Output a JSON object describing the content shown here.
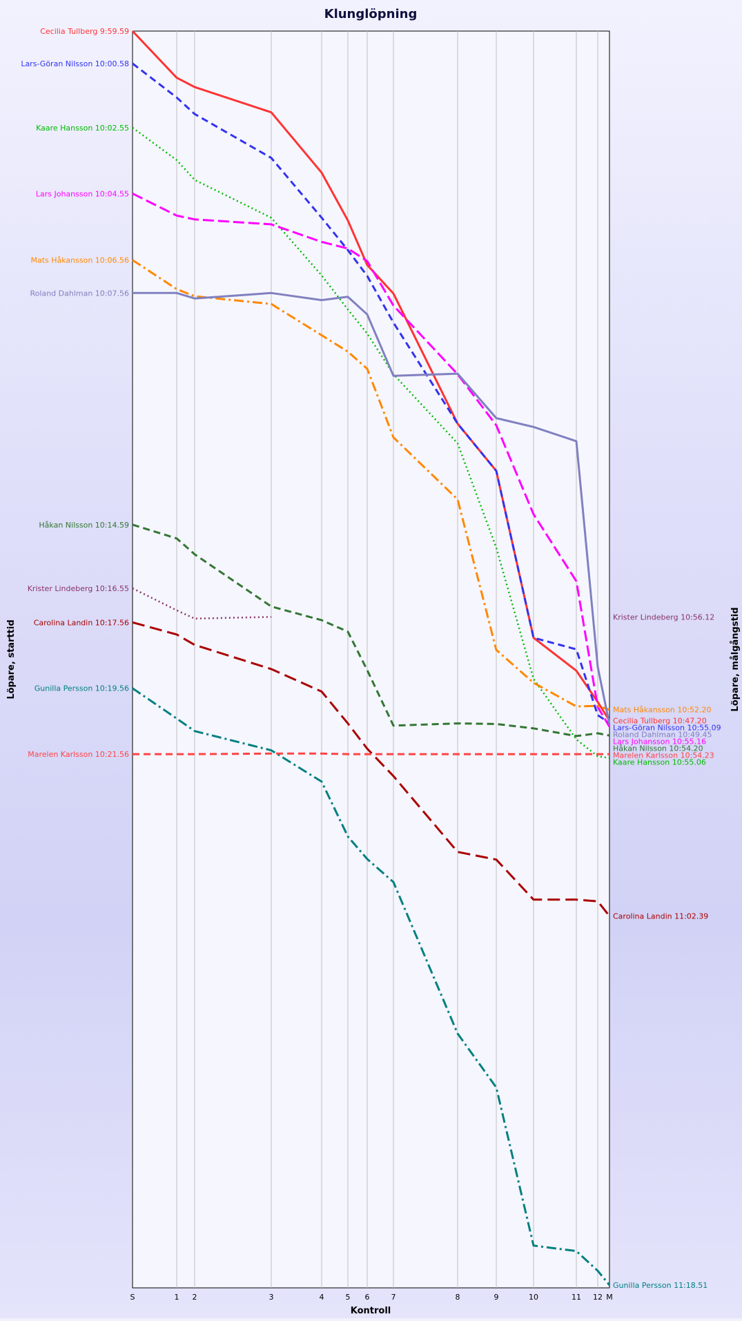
{
  "chart_data": {
    "type": "line",
    "title": "Klunglöpning",
    "xlabel": "Kontroll",
    "ylabel_left": "Löpare, starttid",
    "ylabel_right": "Löpare, målgångstid",
    "grid": "vertical lines at controls",
    "x_categories": [
      "S",
      "1",
      "2",
      "3",
      "4",
      "5",
      "6",
      "7",
      "8",
      "9",
      "10",
      "11",
      "12",
      "M"
    ],
    "series": [
      {
        "name": "Cecilia Tullberg",
        "start_label": "Cecilia Tullberg 9:59.59",
        "finish_label": "Cecilia Tullberg 10:47.20",
        "color": "#ff3333",
        "dash": "solid",
        "values": [
          0,
          85,
          102,
          148,
          258,
          345,
          426,
          478,
          715,
          801,
          1105,
          1165,
          1222,
          1256
        ]
      },
      {
        "name": "Lars-Göran Nilsson",
        "start_label": "Lars-Göran Nilsson 10:00.58",
        "finish_label": "Lars-Göran Nilsson 10:55.09",
        "color": "#3333ee",
        "dash": "dashed",
        "values": [
          59,
          121,
          151,
          231,
          340,
          399,
          446,
          531,
          715,
          801,
          1105,
          1126,
          1246,
          1260
        ]
      },
      {
        "name": "Kaare Hansson",
        "start_label": "Kaare Hansson 10:02.55",
        "finish_label": "Kaare Hansson 10:55.06",
        "color": "#00bb00",
        "dash": "dotted",
        "values": [
          176,
          235,
          271,
          340,
          445,
          507,
          551,
          625,
          751,
          941,
          1180,
          1290,
          1321,
          1324
        ]
      },
      {
        "name": "Lars Johansson",
        "start_label": "Lars Johansson 10:04.55",
        "finish_label": "Lars Johansson 10:55.16",
        "color": "#ff00ff",
        "dash": "dashdash",
        "values": [
          296,
          336,
          343,
          352,
          384,
          396,
          419,
          500,
          625,
          718,
          880,
          1002,
          1231,
          1267
        ]
      },
      {
        "name": "Mats Håkansson",
        "start_label": "Mats Håkansson 10:06.56",
        "finish_label": "Mats Håkansson 10:52.20",
        "color": "#ff8800",
        "dash": "dashdot",
        "values": [
          417,
          470,
          483,
          497,
          554,
          584,
          615,
          740,
          853,
          1127,
          1187,
          1230,
          1229,
          1236
        ]
      },
      {
        "name": "Roland Dahlman",
        "start_label": "Roland Dahlman 10:07.56",
        "finish_label": "Roland Dahlman 10:49.45",
        "color": "#8080c0",
        "dash": "solid",
        "values": [
          477,
          477,
          487,
          477,
          490,
          484,
          516,
          628,
          624,
          705,
          721,
          747,
          1158,
          1263
        ]
      },
      {
        "name": "Håkan Nilsson",
        "start_label": "Håkan Nilsson 10:14.59",
        "finish_label": "Håkan Nilsson 10:54.20",
        "color": "#337733",
        "dash": "dashed",
        "values": [
          899,
          924,
          953,
          1048,
          1073,
          1094,
          1164,
          1265,
          1261,
          1262,
          1270,
          1284,
          1279,
          1283
        ]
      },
      {
        "name": "Krister Lindeberg",
        "start_label": "Krister Lindeberg 10:16.55",
        "finish_label": "Krister Lindeberg 10:56.12",
        "color": "#883366",
        "dash": "dotted",
        "values": [
          1015,
          1055,
          1070,
          1067,
          null,
          null,
          null,
          null,
          null,
          null,
          null,
          null,
          null,
          null
        ]
      },
      {
        "name": "Carolina Landin",
        "start_label": "Carolina Landin 10:17.56",
        "finish_label": "Carolina Landin 11:02.39",
        "color": "#aa0000",
        "dash": "longdash",
        "values": [
          1077,
          1099,
          1118,
          1162,
          1203,
          1261,
          1307,
          1357,
          1495,
          1509,
          1582,
          1582,
          1585,
          1612
        ]
      },
      {
        "name": "Gunilla Persson",
        "start_label": "Gunilla Persson 10:19.56",
        "finish_label": "Gunilla Persson 11:18.51",
        "color": "#008080",
        "dash": "dashdot",
        "values": [
          1197,
          1252,
          1275,
          1310,
          1367,
          1467,
          1508,
          1550,
          1826,
          1924,
          2212,
          2222,
          2258,
          2284
        ]
      },
      {
        "name": "Marelen Karlsson",
        "start_label": "Marelen Karlsson 10:21.56",
        "finish_label": "Marelen Karlsson 10:54.23",
        "color": "#ff4444",
        "dash": "dashed",
        "values": [
          1317,
          1317,
          1317,
          1316,
          1316,
          1317,
          1317,
          1317,
          1317,
          1317,
          1317,
          1317,
          1317,
          1317
        ]
      }
    ]
  }
}
